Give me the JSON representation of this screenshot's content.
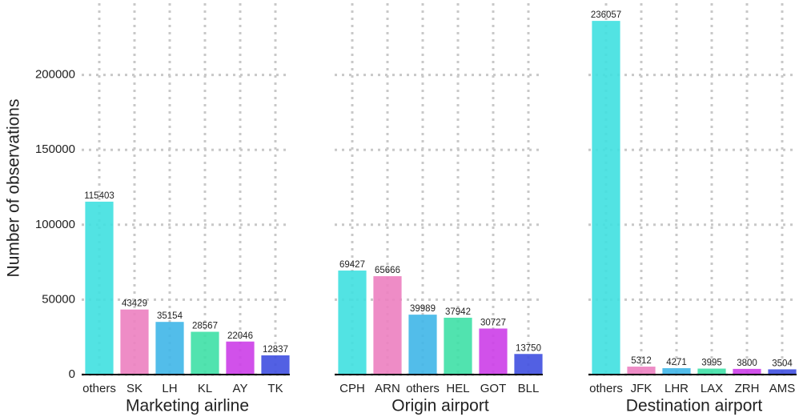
{
  "chart_data": [
    {
      "type": "bar",
      "x_label": "Marketing airline",
      "y_label": "Number of observations",
      "categories": [
        "others",
        "SK",
        "LH",
        "KL",
        "AY",
        "TK"
      ],
      "values": [
        115403,
        43429,
        35154,
        28567,
        22046,
        12837
      ],
      "colors": [
        "#3fe0e0",
        "#ec7fc0",
        "#3fb6e8",
        "#3ee0a6",
        "#cc3ee8",
        "#3f4fe0"
      ],
      "ylim": [
        0,
        250000
      ],
      "yticks": [
        0,
        50000,
        100000,
        150000,
        200000
      ],
      "grid": true
    },
    {
      "type": "bar",
      "x_label": "Origin airport",
      "categories": [
        "CPH",
        "ARN",
        "others",
        "HEL",
        "GOT",
        "BLL"
      ],
      "values": [
        69427,
        65666,
        39989,
        37942,
        30727,
        13750
      ],
      "colors": [
        "#3fe0e0",
        "#ec7fc0",
        "#3fb6e8",
        "#3ee0a6",
        "#cc3ee8",
        "#3f4fe0"
      ],
      "ylim": [
        0,
        250000
      ],
      "grid": true
    },
    {
      "type": "bar",
      "x_label": "Destination airport",
      "categories": [
        "others",
        "JFK",
        "LHR",
        "LAX",
        "ZRH",
        "AMS"
      ],
      "values": [
        236057,
        5312,
        4271,
        3995,
        3800,
        3504
      ],
      "colors": [
        "#3fe0e0",
        "#ec7fc0",
        "#3fb6e8",
        "#3ee0a6",
        "#cc3ee8",
        "#3f4fe0"
      ],
      "ylim": [
        0,
        250000
      ],
      "grid": true
    }
  ]
}
